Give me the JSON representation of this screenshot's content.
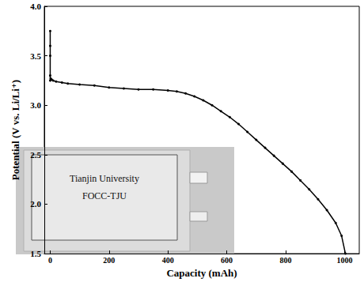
{
  "chart_data": {
    "type": "line",
    "x_label": "Capacity (mAh)",
    "y_label": "Potential (V vs. Li/Li⁺)",
    "x": [
      0,
      0,
      0,
      0,
      0,
      2,
      5,
      10,
      20,
      40,
      60,
      100,
      150,
      200,
      250,
      300,
      350,
      400,
      430,
      460,
      490,
      520,
      550,
      580,
      610,
      640,
      670,
      700,
      730,
      760,
      790,
      820,
      850,
      880,
      910,
      940,
      970,
      990,
      1003
    ],
    "values": [
      3.3,
      3.5,
      3.75,
      3.6,
      3.25,
      3.27,
      3.26,
      3.25,
      3.24,
      3.23,
      3.22,
      3.21,
      3.2,
      3.18,
      3.17,
      3.16,
      3.16,
      3.15,
      3.14,
      3.12,
      3.09,
      3.05,
      3.0,
      2.94,
      2.88,
      2.81,
      2.73,
      2.65,
      2.57,
      2.49,
      2.41,
      2.33,
      2.24,
      2.15,
      2.05,
      1.94,
      1.81,
      1.68,
      1.5
    ],
    "color": "#000000",
    "marker": "circle",
    "xlim": [
      -20,
      1050
    ],
    "xticks": [
      0,
      200,
      400,
      600,
      800,
      1000
    ],
    "ylim": [
      1.5,
      4.0
    ],
    "yticks": [
      1.5,
      {
        "value": 2,
        "label": "2.0"
      },
      2.5,
      {
        "value": 3,
        "label": "3.0"
      },
      3.5,
      {
        "value": 4,
        "label": "4.0"
      }
    ],
    "grid": false,
    "annotations": [
      "Tianjin University",
      "FOCC-TJU"
    ]
  }
}
